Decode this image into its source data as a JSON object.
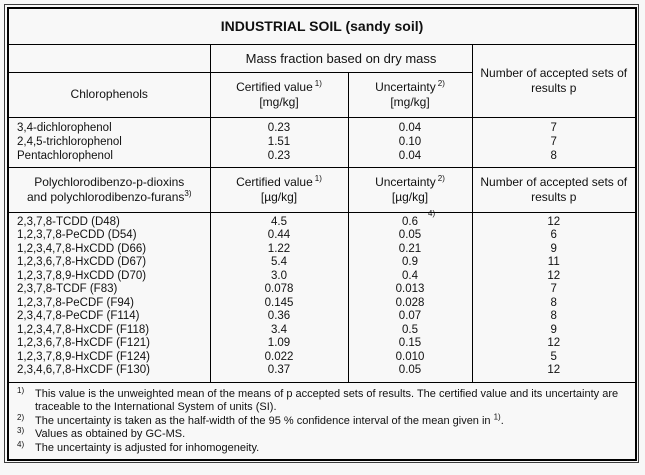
{
  "colors": {
    "background": "#f7f7f7",
    "border": "#000000",
    "text": "#111111"
  },
  "table": {
    "title": "INDUSTRIAL SOIL (sandy soil)",
    "group_header": "Mass fraction based on dry mass",
    "accepted_sets_header": "Number of accepted sets of results p",
    "sections": [
      {
        "analyte_header_line1": "Chlorophenols",
        "analyte_header_line2": "",
        "analyte_header_sup": "",
        "certified_label": "Certified value",
        "certified_sup": "1)",
        "certified_unit": "[mg/kg]",
        "uncertainty_label": "Uncertainty",
        "uncertainty_sup": "2)",
        "uncertainty_unit": "[mg/kg]",
        "rows": [
          {
            "analyte": "3,4-dichlorophenol",
            "certified": "0.23",
            "uncertainty": "0.04",
            "uncertainty_sup": "",
            "sets": "7"
          },
          {
            "analyte": "2,4,5-trichlorophenol",
            "certified": "1.51",
            "uncertainty": "0.10",
            "uncertainty_sup": "",
            "sets": "7"
          },
          {
            "analyte": "Pentachlorophenol",
            "certified": "0.23",
            "uncertainty": "0.04",
            "uncertainty_sup": "",
            "sets": "8"
          }
        ]
      },
      {
        "analyte_header_line1": "Polychlorodibenzo-p-dioxins",
        "analyte_header_line2": "and polychlorodibenzo-furans",
        "analyte_header_sup": "3)",
        "certified_label": "Certified value",
        "certified_sup": "1)",
        "certified_unit": "[µg/kg]",
        "uncertainty_label": "Uncertainty",
        "uncertainty_sup": "2)",
        "uncertainty_unit": "[µg/kg]",
        "rows": [
          {
            "analyte": "2,3,7,8-TCDD (D48)",
            "certified": "4.5",
            "uncertainty": "0.6",
            "uncertainty_sup": "4)",
            "sets": "12"
          },
          {
            "analyte": "1,2,3,7,8-PeCDD (D54)",
            "certified": "0.44",
            "uncertainty": "0.05",
            "uncertainty_sup": "",
            "sets": "6"
          },
          {
            "analyte": "1,2,3,4,7,8-HxCDD (D66)",
            "certified": "1.22",
            "uncertainty": "0.21",
            "uncertainty_sup": "",
            "sets": "9"
          },
          {
            "analyte": "1,2,3,6,7,8-HxCDD (D67)",
            "certified": "5.4",
            "uncertainty": "0.9",
            "uncertainty_sup": "",
            "sets": "11"
          },
          {
            "analyte": "1,2,3,7,8,9-HxCDD (D70)",
            "certified": "3.0",
            "uncertainty": "0.4",
            "uncertainty_sup": "",
            "sets": "12"
          },
          {
            "analyte": "2,3,7,8-TCDF (F83)",
            "certified": "0.078",
            "uncertainty": "0.013",
            "uncertainty_sup": "",
            "sets": "7"
          },
          {
            "analyte": "1,2,3,7,8-PeCDF (F94)",
            "certified": "0.145",
            "uncertainty": "0.028",
            "uncertainty_sup": "",
            "sets": "8"
          },
          {
            "analyte": "2,3,4,7,8-PeCDF (F114)",
            "certified": "0.36",
            "uncertainty": "0.07",
            "uncertainty_sup": "",
            "sets": "8"
          },
          {
            "analyte": "1,2,3,4,7,8-HxCDF (F118)",
            "certified": "3.4",
            "uncertainty": "0.5",
            "uncertainty_sup": "",
            "sets": "9"
          },
          {
            "analyte": "1,2,3,6,7,8-HxCDF (F121)",
            "certified": "1.09",
            "uncertainty": "0.15",
            "uncertainty_sup": "",
            "sets": "12"
          },
          {
            "analyte": "1,2,3,7,8,9-HxCDF (F124)",
            "certified": "0.022",
            "uncertainty": "0.010",
            "uncertainty_sup": "",
            "sets": "5"
          },
          {
            "analyte": "2,3,4,6,7,8-HxCDF (F130)",
            "certified": "0.37",
            "uncertainty": "0.05",
            "uncertainty_sup": "",
            "sets": "12"
          }
        ]
      }
    ],
    "footnotes": [
      {
        "marker": "1)",
        "text": "This value is the unweighted mean of the means of p accepted sets of results. The certified value and its uncertainty are traceable to the International System of units (SI).",
        "inline_sup": "",
        "tail": ""
      },
      {
        "marker": "2)",
        "text": "The uncertainty is taken as the half-width of the 95 % confidence interval of the mean given in ",
        "inline_sup": "1)",
        "tail": "."
      },
      {
        "marker": "3)",
        "text": "Values as obtained by GC-MS.",
        "inline_sup": "",
        "tail": ""
      },
      {
        "marker": "4)",
        "text": "The uncertainty is adjusted for inhomogeneity.",
        "inline_sup": "",
        "tail": ""
      }
    ]
  }
}
